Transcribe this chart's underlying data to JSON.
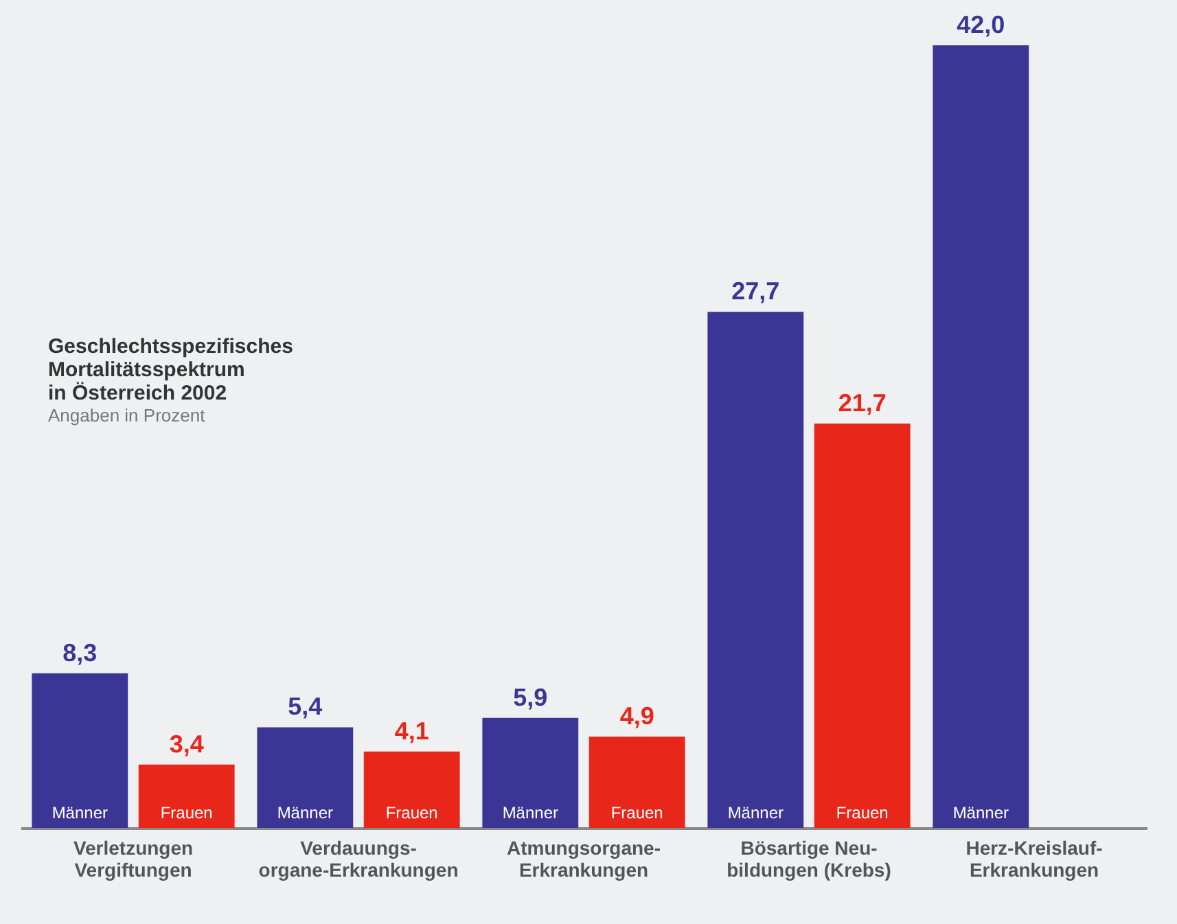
{
  "chart_data": {
    "type": "bar",
    "title": "Geschlechtsspezifisches Mortalitätsspektrum in Österreich 2002",
    "subtitle": "Angaben in Prozent",
    "categories": [
      "Verletzungen\nVergiftungen",
      "Verdauungs-\norgane-Erkrankungen",
      "Atmungsorgane-\nErkrankungen",
      "Bösartige Neu-\nbildungen (Krebs)",
      "Herz-Kreislauf-\nErkrankungen"
    ],
    "series": [
      {
        "name": "Männer",
        "color": "#3b3596",
        "values": [
          8.3,
          5.4,
          5.9,
          27.7,
          42.0
        ],
        "value_labels": [
          "8,3",
          "5,4",
          "5,9",
          "27,7",
          "42,0"
        ]
      },
      {
        "name": "Frauen",
        "color": "#e8261a",
        "values": [
          3.4,
          4.1,
          4.9,
          21.7,
          null
        ],
        "value_labels": [
          "3,4",
          "4,1",
          "4,9",
          "21,7",
          null
        ]
      }
    ],
    "ylim": [
      0,
      42
    ],
    "tick_labels": "x",
    "legend": false
  }
}
